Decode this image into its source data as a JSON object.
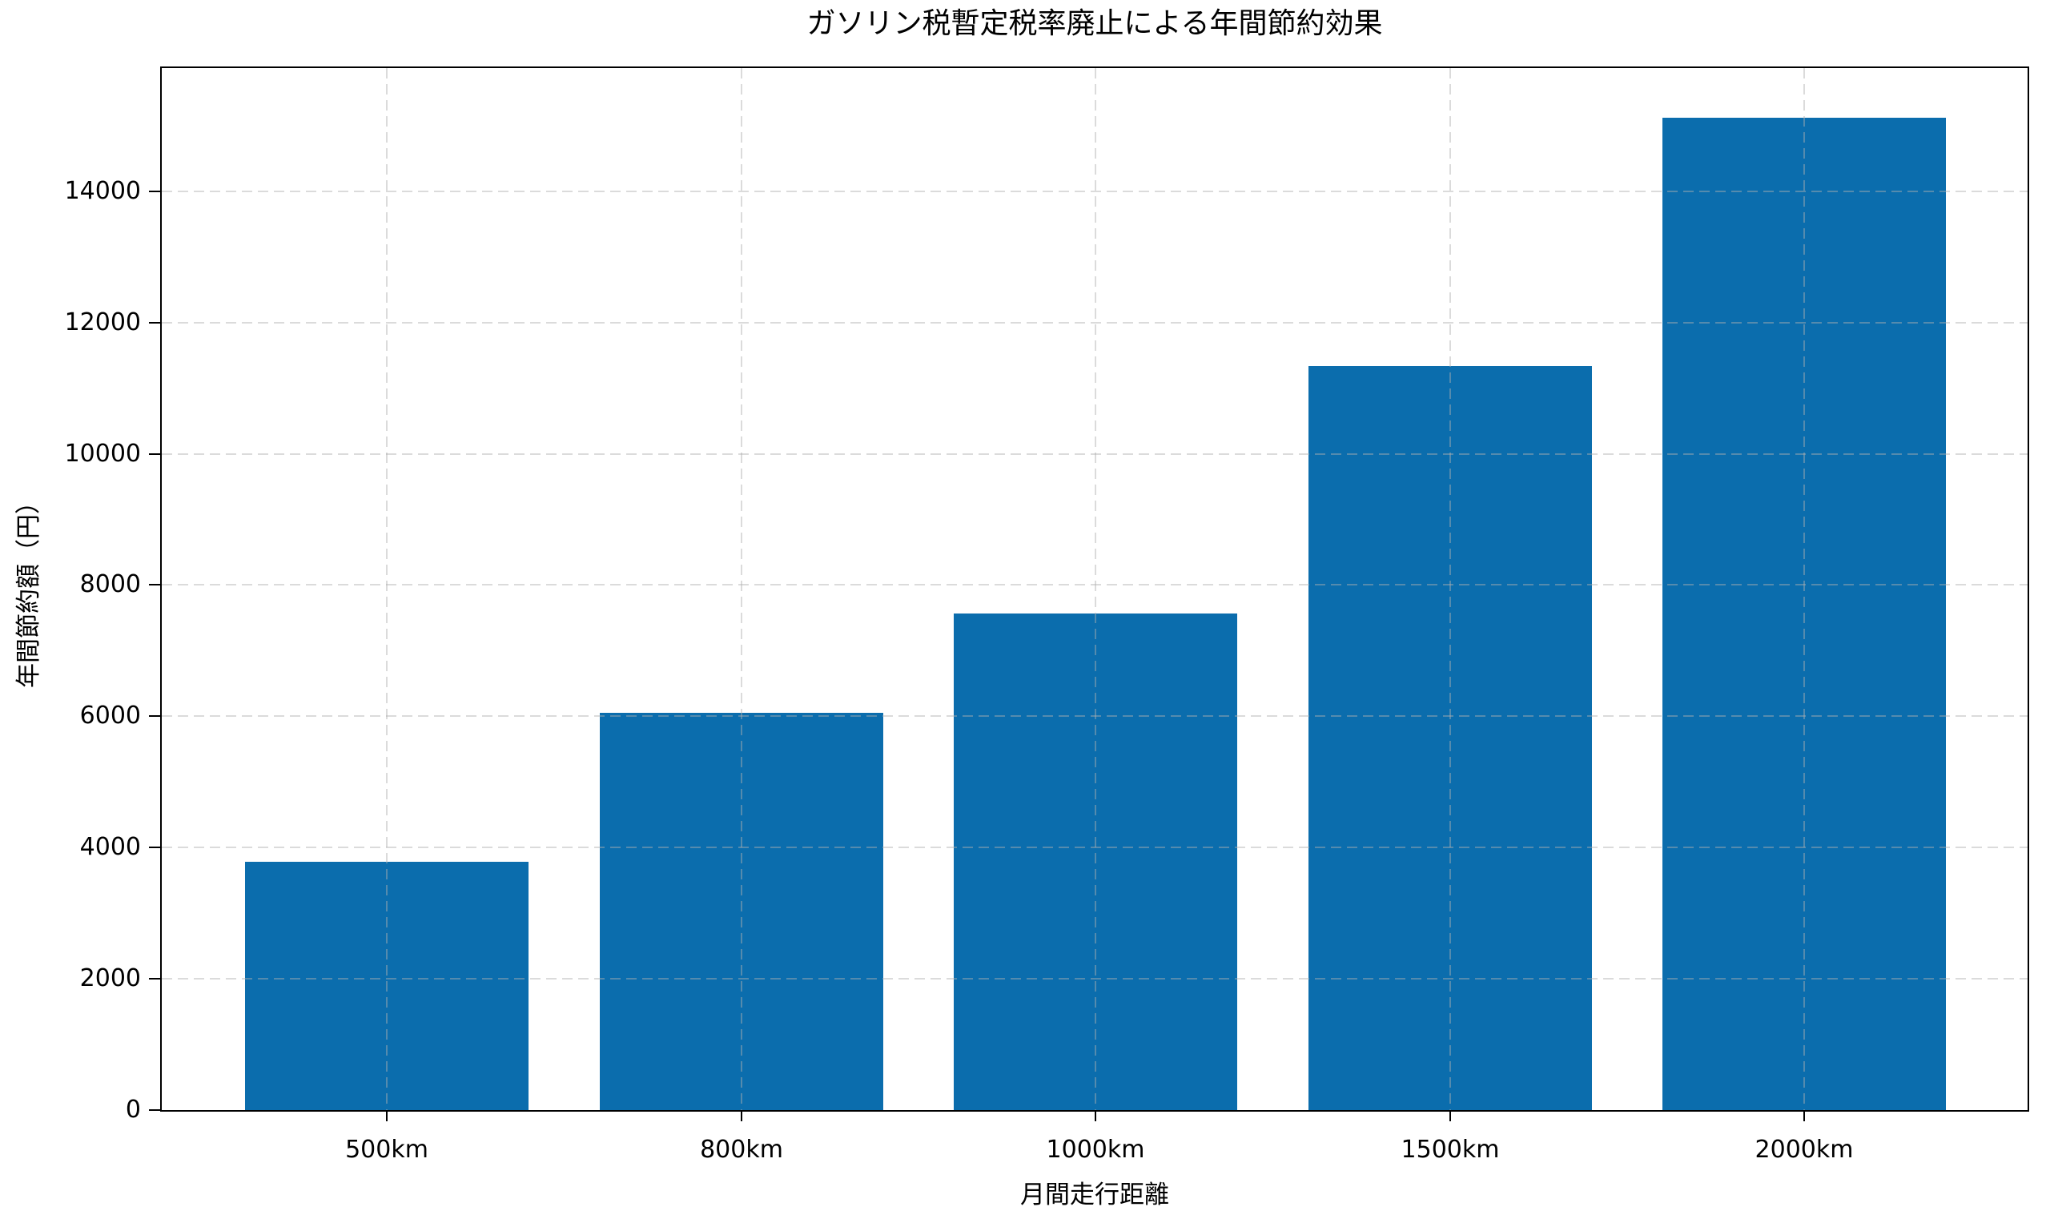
{
  "chart_data": {
    "type": "bar",
    "title": "ガソリン税暫定税率廃止による年間節約効果",
    "xlabel": "月間走行距離",
    "ylabel": "年間節約額（円）",
    "categories": [
      "500km",
      "800km",
      "1000km",
      "1500km",
      "2000km"
    ],
    "values": [
      3780,
      6048,
      7560,
      11340,
      15120
    ],
    "yticks": [
      0,
      2000,
      4000,
      6000,
      8000,
      10000,
      12000,
      14000
    ],
    "ylim": [
      0,
      15876
    ],
    "bar_color": "#0b6dad",
    "grid": {
      "visible": true,
      "axis": "both",
      "linestyle": "dashed",
      "drawn_above_bars": true,
      "color": "#c8c8c8"
    },
    "spines": "full-box",
    "legend": null,
    "background_color": "#ffffff"
  }
}
